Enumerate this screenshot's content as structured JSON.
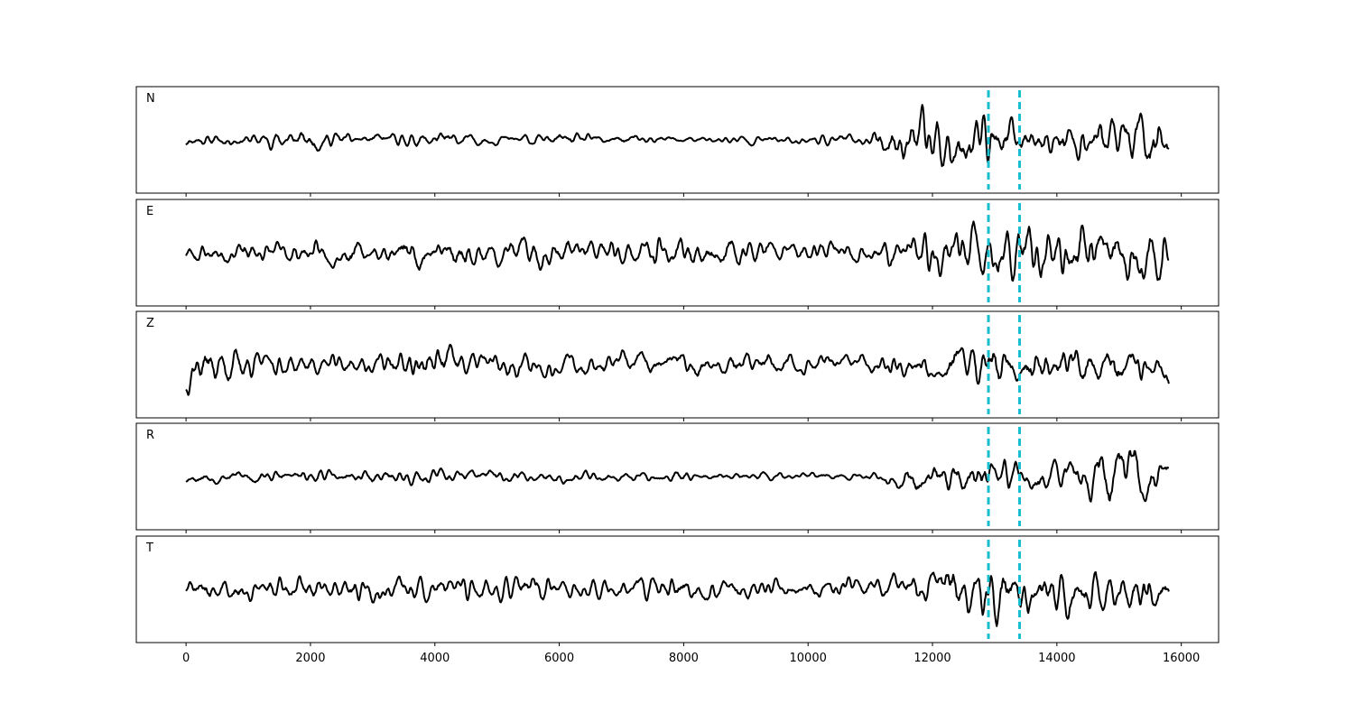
{
  "chart_data": {
    "type": "line",
    "layout": "5 vertically stacked waveform panels sharing x axis",
    "x_ticks": [
      0,
      2000,
      4000,
      6000,
      8000,
      10000,
      12000,
      14000,
      16000
    ],
    "x_tick_labels": [
      "0",
      "2000",
      "4000",
      "6000",
      "8000",
      "10000",
      "12000",
      "14000",
      "16000"
    ],
    "xlim": [
      -800,
      16600
    ],
    "x_range": [
      0,
      15800
    ],
    "y_ticks_shown": false,
    "grid": false,
    "vertical_markers": {
      "color": "#17becf",
      "style": "dashed",
      "x": [
        12900,
        13400
      ]
    },
    "trace_color": "#000000",
    "series": [
      {
        "name": "N",
        "label": "N",
        "seed": 11,
        "amps": [
          0.15,
          0.16,
          0.3,
          0.16,
          0.2,
          0.12,
          0.18,
          0.12,
          0.1,
          0.12,
          0.12,
          0.15,
          0.8,
          0.7,
          0.5,
          0.7,
          0.8
        ]
      },
      {
        "name": "E",
        "label": "E",
        "seed": 23,
        "amps": [
          0.3,
          0.3,
          0.3,
          0.35,
          0.45,
          0.35,
          0.45,
          0.35,
          0.45,
          0.35,
          0.3,
          0.3,
          0.6,
          0.9,
          0.8,
          0.8,
          0.8
        ]
      },
      {
        "name": "Z",
        "label": "Z",
        "seed": 37,
        "amps": [
          0.7,
          0.35,
          0.3,
          0.3,
          0.55,
          0.35,
          0.3,
          0.3,
          0.3,
          0.3,
          0.25,
          0.25,
          0.35,
          0.6,
          0.5,
          0.5,
          0.5
        ]
      },
      {
        "name": "R",
        "label": "R",
        "seed": 53,
        "amps": [
          0.15,
          0.2,
          0.15,
          0.2,
          0.25,
          0.2,
          0.15,
          0.15,
          0.15,
          0.12,
          0.12,
          0.1,
          0.5,
          0.5,
          0.35,
          0.8,
          0.6
        ]
      },
      {
        "name": "T",
        "label": "T",
        "seed": 71,
        "amps": [
          0.3,
          0.35,
          0.35,
          0.4,
          0.4,
          0.35,
          0.35,
          0.35,
          0.35,
          0.3,
          0.3,
          0.3,
          0.55,
          0.8,
          0.65,
          0.6,
          0.6
        ]
      }
    ]
  }
}
